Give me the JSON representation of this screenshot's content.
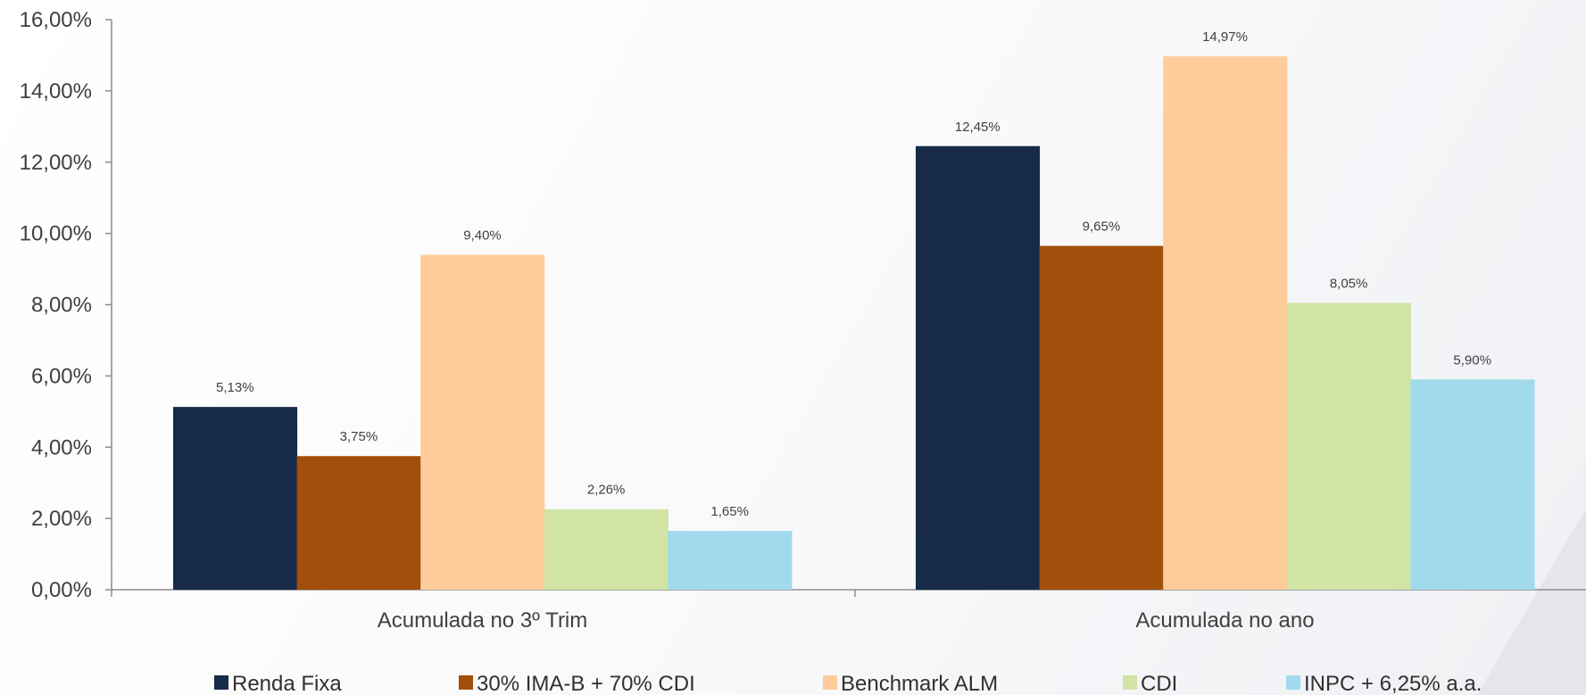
{
  "chart_data": {
    "type": "bar",
    "categories": [
      "Acumulada no 3º Trim",
      "Acumulada no ano"
    ],
    "series": [
      {
        "name": "Renda Fixa",
        "values": [
          5.13,
          12.45
        ],
        "labels": [
          "5,13%",
          "12,45%"
        ],
        "color": "#172a48"
      },
      {
        "name": "30% IMA-B + 70% CDI",
        "values": [
          3.75,
          9.65
        ],
        "labels": [
          "3,75%",
          "9,65%"
        ],
        "color": "#a24f0b"
      },
      {
        "name": "Benchmark ALM",
        "values": [
          9.4,
          14.97
        ],
        "labels": [
          "9,40%",
          "14,97%"
        ],
        "color": "#fecc9a"
      },
      {
        "name": "CDI",
        "values": [
          2.26,
          8.05
        ],
        "labels": [
          "2,26%",
          "8,05%"
        ],
        "color": "#d2e3a6"
      },
      {
        "name": "INPC + 6,25% a.a.",
        "values": [
          1.65,
          5.9
        ],
        "labels": [
          "1,65%",
          "5,90%"
        ],
        "color": "#a1daec"
      }
    ],
    "ylim": [
      0,
      16
    ],
    "y_ticks": [
      {
        "value": 0,
        "label": "0,00%"
      },
      {
        "value": 2,
        "label": "2,00%"
      },
      {
        "value": 4,
        "label": "4,00%"
      },
      {
        "value": 6,
        "label": "6,00%"
      },
      {
        "value": 8,
        "label": "8,00%"
      },
      {
        "value": 10,
        "label": "10,00%"
      },
      {
        "value": 12,
        "label": "12,00%"
      },
      {
        "value": 14,
        "label": "14,00%"
      },
      {
        "value": 16,
        "label": "16,00%"
      }
    ],
    "title": "",
    "xlabel": "",
    "ylabel": "",
    "grid": false,
    "legend_position": "bottom"
  }
}
